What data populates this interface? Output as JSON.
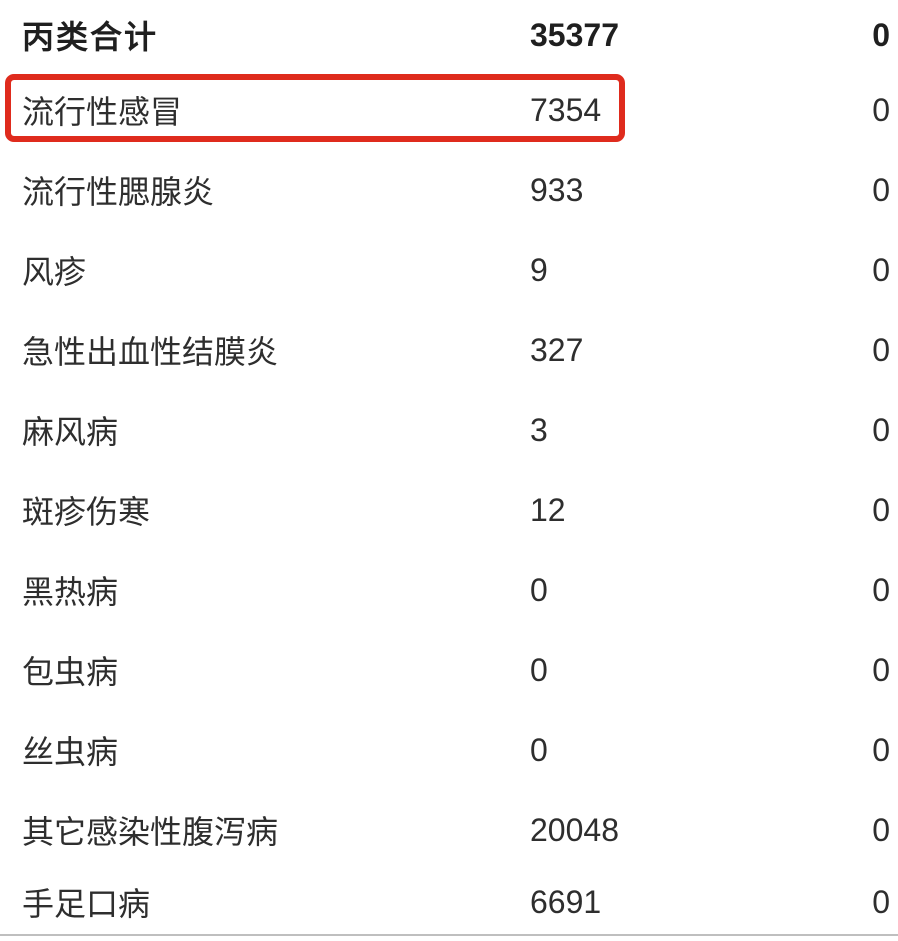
{
  "page": {
    "background_color": "#ffffff",
    "text_color": "#2e2e2e",
    "bottom_border_color": "#bfbfbf"
  },
  "table": {
    "columns": [
      "disease_name",
      "reported_cases",
      "deaths"
    ],
    "highlight": {
      "row_name": "流行性感冒",
      "color": "#df2b1d",
      "shape": "red-rectangle-annotation"
    },
    "rows": [
      {
        "name": "丙类合计",
        "cases": "35377",
        "deaths": "0",
        "bold": true,
        "highlighted": false
      },
      {
        "name": "流行性感冒",
        "cases": "7354",
        "deaths": "0",
        "bold": false,
        "highlighted": true
      },
      {
        "name": "流行性腮腺炎",
        "cases": "933",
        "deaths": "0",
        "bold": false,
        "highlighted": false
      },
      {
        "name": "风疹",
        "cases": "9",
        "deaths": "0",
        "bold": false,
        "highlighted": false
      },
      {
        "name": "急性出血性结膜炎",
        "cases": "327",
        "deaths": "0",
        "bold": false,
        "highlighted": false
      },
      {
        "name": "麻风病",
        "cases": "3",
        "deaths": "0",
        "bold": false,
        "highlighted": false
      },
      {
        "name": "斑疹伤寒",
        "cases": "12",
        "deaths": "0",
        "bold": false,
        "highlighted": false
      },
      {
        "name": "黑热病",
        "cases": "0",
        "deaths": "0",
        "bold": false,
        "highlighted": false
      },
      {
        "name": "包虫病",
        "cases": "0",
        "deaths": "0",
        "bold": false,
        "highlighted": false
      },
      {
        "name": "丝虫病",
        "cases": "0",
        "deaths": "0",
        "bold": false,
        "highlighted": false
      },
      {
        "name": "其它感染性腹泻病",
        "cases": "20048",
        "deaths": "0",
        "bold": false,
        "highlighted": false
      },
      {
        "name": "手足口病",
        "cases": "6691",
        "deaths": "0",
        "bold": false,
        "highlighted": false
      }
    ]
  }
}
